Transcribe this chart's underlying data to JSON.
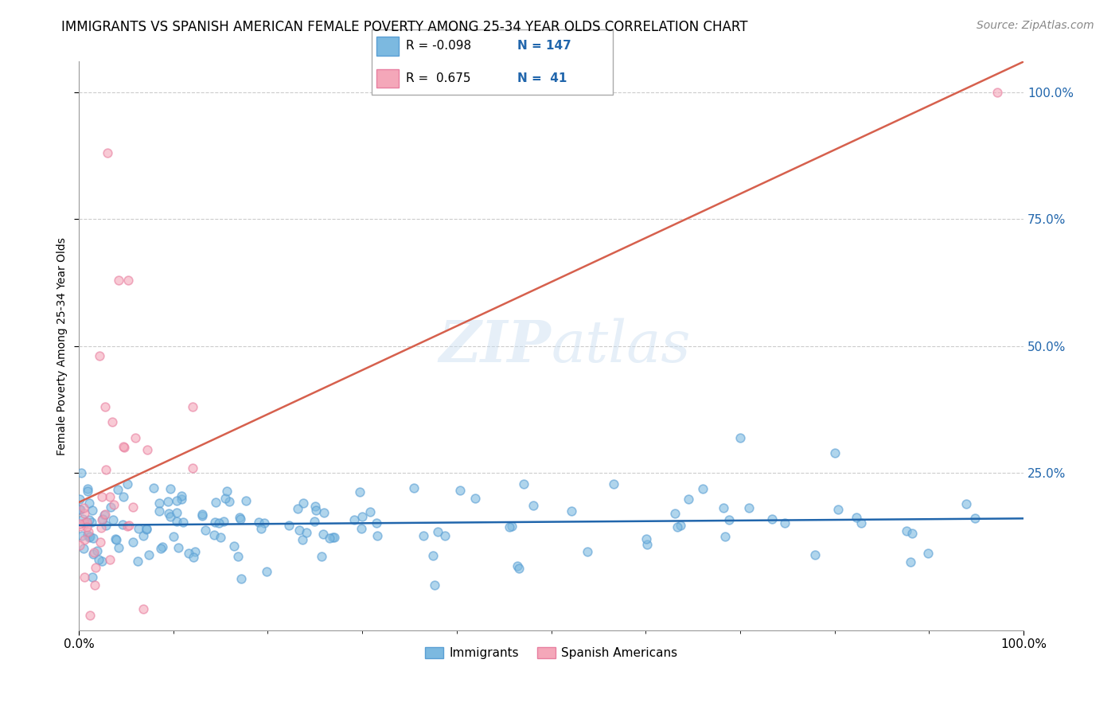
{
  "title": "IMMIGRANTS VS SPANISH AMERICAN FEMALE POVERTY AMONG 25-34 YEAR OLDS CORRELATION CHART",
  "source": "Source: ZipAtlas.com",
  "ylabel": "Female Poverty Among 25-34 Year Olds",
  "ytick_labels_right": [
    "100.0%",
    "75.0%",
    "50.0%",
    "25.0%"
  ],
  "ytick_values": [
    1.0,
    0.75,
    0.5,
    0.25
  ],
  "xlim": [
    0.0,
    1.0
  ],
  "ylim": [
    -0.06,
    1.06
  ],
  "immigrants_color": "#7cb9e0",
  "spanish_color": "#f4a7b9",
  "immigrants_edge_color": "#5a9fd4",
  "spanish_edge_color": "#e87fa0",
  "immigrants_line_color": "#2166ac",
  "spanish_line_color": "#d6604d",
  "legend_immigrants": "Immigrants",
  "legend_spanish": "Spanish Americans",
  "r_immigrants": -0.098,
  "n_immigrants": 147,
  "r_spanish": 0.675,
  "n_spanish": 41,
  "watermark_zip": "ZIP",
  "watermark_atlas": "atlas",
  "background_color": "#ffffff",
  "grid_color": "#cccccc",
  "title_fontsize": 12,
  "axis_label_fontsize": 10,
  "tick_fontsize": 11,
  "legend_fontsize": 11,
  "source_fontsize": 10,
  "scatter_size": 60,
  "scatter_alpha": 0.6,
  "scatter_linewidth": 1.2
}
